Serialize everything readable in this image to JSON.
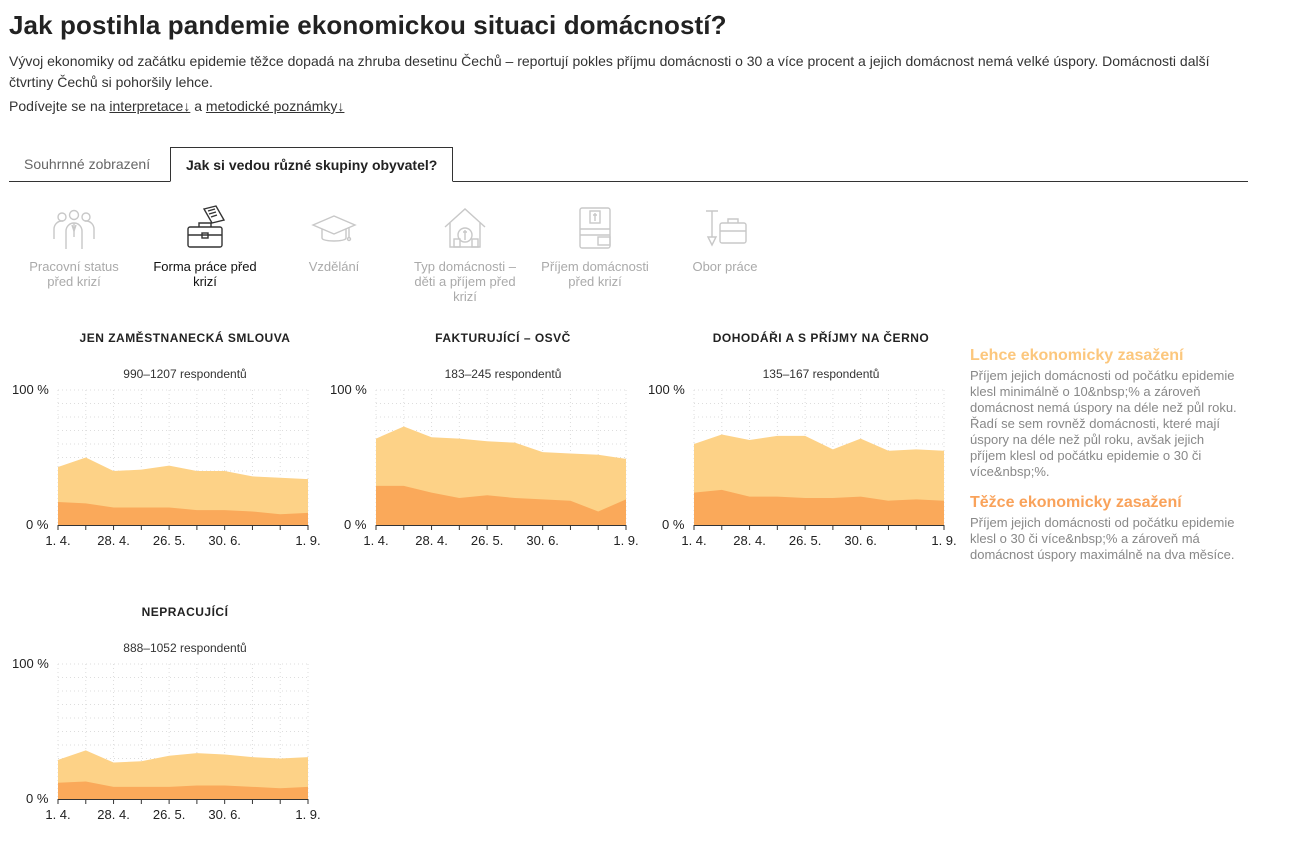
{
  "title": "Jak postihla pandemie ekonomickou situaci domácností?",
  "lead": "Vývoj ekonomiky od začátku epidemie těžce dopadá na zhruba desetinu Čechů – reportují pokles příjmu domácnosti o 30 a více procent a jejich domácnost nemá velké úspory. Domácnosti další čtvrtiny Čechů si pohoršily lehce.",
  "links": {
    "prefix": "Podívejte se na",
    "interp": "interpretace↓",
    "and": "a",
    "metod": "metodické poznámky↓"
  },
  "tabs": [
    "Souhrnné zobrazení",
    "Jak si vedou různé skupiny obyvatel?"
  ],
  "categories": [
    {
      "label": "Pracovní status před krizí",
      "icon": "people-icon"
    },
    {
      "label": "Forma práce před krizí",
      "icon": "briefcase-contract-icon"
    },
    {
      "label": "Vzdělání",
      "icon": "graduation-cap-icon"
    },
    {
      "label": "Typ domácnosti – děti a příjem před krizí",
      "icon": "house-money-icon"
    },
    {
      "label": "Příjem domácnosti před krizí",
      "icon": "phone-wallet-icon"
    },
    {
      "label": "Obor práce",
      "icon": "tools-briefcase-icon"
    }
  ],
  "colors": {
    "light": "#fdd287",
    "heavy": "#faa95a",
    "legend_light": "#fcc77d",
    "legend_heavy": "#f9a25a",
    "grid": "#dddddd",
    "axis": "#333333"
  },
  "axis": {
    "y_top": "100 %",
    "y_bottom": "0 %",
    "x_ticks": [
      "1. 4.",
      "28. 4.",
      "26. 5.",
      "30. 6.",
      "1. 9."
    ]
  },
  "legend": {
    "light_title": "Lehce ekonomicky zasažení",
    "light_text": "Příjem jejich domácnosti od počátku epidemie klesl minimálně o 10&nbsp;% a zároveň domácnost nemá úspory na déle než půl roku. Řadí se sem rovněž domácnosti, které mají úspory na déle než půl roku, avšak jejich příjem klesl od počátku epidemie o 30 či více&nbsp;%.",
    "heavy_title": "Těžce ekonomicky zasažení",
    "heavy_text": "Příjem jejich domácnosti od počátku epidemie klesl o 30 či více&nbsp;% a zároveň má domácnost úspory maximálně na dva měsíce."
  },
  "chart_data": [
    {
      "type": "area",
      "title": "JEN ZAMĚSTNANECKÁ SMLOUVA",
      "subtitle": "990–1207 respondentů",
      "x": [
        "1. 4.",
        "",
        "28. 4.",
        "",
        "26. 5.",
        "",
        "30. 6.",
        "",
        "",
        "1. 9."
      ],
      "ylim": [
        0,
        100
      ],
      "series": [
        {
          "values": [
            17,
            16,
            13,
            13,
            13,
            11,
            11,
            10,
            8,
            9
          ]
        },
        {
          "values": [
            43,
            50,
            40,
            41,
            44,
            40,
            40,
            36,
            35,
            34
          ]
        }
      ]
    },
    {
      "type": "area",
      "title": "FAKTURUJÍCÍ – OSVČ",
      "subtitle": "183–245 respondentů",
      "x": [
        "1. 4.",
        "",
        "28. 4.",
        "",
        "26. 5.",
        "",
        "30. 6.",
        "",
        "",
        "1. 9."
      ],
      "ylim": [
        0,
        100
      ],
      "series": [
        {
          "values": [
            29,
            29,
            24,
            20,
            22,
            20,
            19,
            18,
            10,
            19
          ]
        },
        {
          "values": [
            64,
            73,
            65,
            64,
            62,
            61,
            54,
            53,
            52,
            49
          ]
        }
      ]
    },
    {
      "type": "area",
      "title": "DOHODÁŘI A S PŘÍJMY NA ČERNO",
      "subtitle": "135–167 respondentů",
      "x": [
        "1. 4.",
        "",
        "28. 4.",
        "",
        "26. 5.",
        "",
        "30. 6.",
        "",
        "",
        "1. 9."
      ],
      "ylim": [
        0,
        100
      ],
      "series": [
        {
          "values": [
            24,
            26,
            21,
            21,
            20,
            20,
            21,
            18,
            19,
            18
          ]
        },
        {
          "values": [
            60,
            67,
            63,
            66,
            66,
            56,
            64,
            55,
            56,
            55
          ]
        }
      ]
    },
    {
      "type": "area",
      "title": "NEPRACUJÍCÍ",
      "subtitle": "888–1052 respondentů",
      "x": [
        "1. 4.",
        "",
        "28. 4.",
        "",
        "26. 5.",
        "",
        "30. 6.",
        "",
        "",
        "1. 9."
      ],
      "ylim": [
        0,
        100
      ],
      "series": [
        {
          "values": [
            12,
            13,
            9,
            9,
            9,
            10,
            10,
            9,
            8,
            9
          ]
        },
        {
          "values": [
            29,
            36,
            27,
            28,
            32,
            34,
            33,
            31,
            30,
            31
          ]
        }
      ]
    }
  ]
}
